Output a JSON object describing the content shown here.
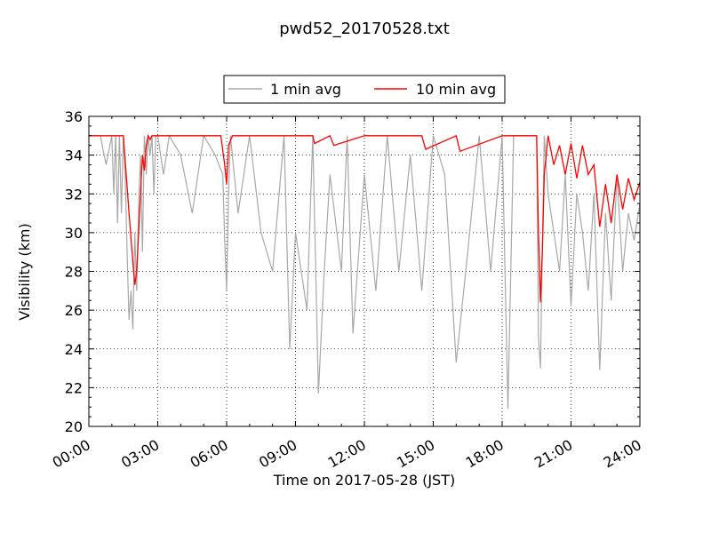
{
  "chart_data": {
    "type": "line",
    "title": "pwd52_20170528.txt",
    "xlabel": "Time on 2017-05-28 (JST)",
    "ylabel": "Visibility (km)",
    "xlim": [
      "2017-05-28 00:00",
      "2017-05-29 00:00"
    ],
    "ylim": [
      20,
      36
    ],
    "x_ticks": [
      "00:00",
      "03:00",
      "06:00",
      "09:00",
      "12:00",
      "15:00",
      "18:00",
      "21:00",
      "24:00"
    ],
    "y_ticks": [
      "20",
      "22",
      "24",
      "26",
      "28",
      "30",
      "32",
      "34",
      "36"
    ],
    "grid": true,
    "legend_position": "top-center",
    "series": [
      {
        "name": "1 min avg",
        "color": "#a8a8a8",
        "x": [
          "00:00",
          "00:30",
          "00:45",
          "01:00",
          "01:05",
          "01:10",
          "01:15",
          "01:20",
          "01:25",
          "01:30",
          "01:35",
          "01:40",
          "01:45",
          "01:50",
          "01:55",
          "02:00",
          "02:05",
          "02:10",
          "02:15",
          "02:20",
          "02:25",
          "02:30",
          "02:35",
          "02:40",
          "02:45",
          "02:50",
          "02:55",
          "03:00",
          "03:15",
          "03:30",
          "04:00",
          "04:30",
          "05:00",
          "05:30",
          "05:50",
          "05:55",
          "06:00",
          "06:05",
          "06:10",
          "06:30",
          "07:00",
          "07:30",
          "08:00",
          "08:30",
          "08:45",
          "09:00",
          "09:30",
          "09:45",
          "10:00",
          "10:15",
          "10:30",
          "11:00",
          "11:15",
          "11:30",
          "12:00",
          "12:30",
          "13:00",
          "13:30",
          "14:00",
          "14:30",
          "15:00",
          "15:30",
          "16:00",
          "16:30",
          "17:00",
          "17:30",
          "18:00",
          "18:15",
          "18:30",
          "19:00",
          "19:30",
          "19:35",
          "19:40",
          "19:45",
          "19:50",
          "20:00",
          "20:30",
          "20:45",
          "21:00",
          "21:15",
          "21:30",
          "21:45",
          "22:00",
          "22:15",
          "22:30",
          "22:45",
          "23:00",
          "23:15",
          "23:30",
          "23:45",
          "24:00"
        ],
        "y": [
          35,
          35,
          33.5,
          35,
          32,
          35,
          30.5,
          35,
          31,
          35,
          33,
          28.8,
          25.5,
          27,
          25,
          30,
          27,
          31.5,
          34,
          29,
          35,
          33,
          35,
          34,
          35,
          32,
          35,
          35,
          33,
          35,
          34,
          31,
          35,
          34,
          33,
          29.6,
          27,
          32,
          35,
          31,
          35,
          30,
          28,
          35,
          24,
          30,
          26,
          35,
          21.7,
          28,
          33,
          28,
          35,
          24.8,
          33,
          27,
          35,
          28,
          34,
          27,
          35,
          33,
          23.3,
          29,
          35,
          28,
          35,
          20.9,
          35,
          35,
          35,
          24.6,
          23,
          29,
          35,
          32,
          28,
          33,
          26.2,
          32,
          30,
          27,
          32,
          22.9,
          31,
          26.5,
          33,
          28,
          31,
          29.6,
          31.5
        ]
      },
      {
        "name": "10 min avg",
        "color": "#ff0000",
        "x": [
          "00:00",
          "01:00",
          "01:30",
          "01:45",
          "01:55",
          "02:00",
          "02:05",
          "02:10",
          "02:15",
          "02:20",
          "02:25",
          "02:30",
          "02:35",
          "02:40",
          "02:45",
          "03:00",
          "05:45",
          "05:55",
          "06:00",
          "06:05",
          "06:15",
          "09:45",
          "09:50",
          "10:30",
          "10:40",
          "12:00",
          "14:30",
          "14:40",
          "16:00",
          "16:10",
          "18:00",
          "19:30",
          "19:35",
          "19:40",
          "19:45",
          "19:50",
          "20:00",
          "20:15",
          "20:30",
          "20:45",
          "21:00",
          "21:15",
          "21:30",
          "21:45",
          "22:00",
          "22:15",
          "22:30",
          "22:45",
          "23:00",
          "23:15",
          "23:30",
          "23:45",
          "24:00"
        ],
        "y": [
          35,
          35,
          35,
          31,
          28.5,
          27.3,
          28,
          30,
          32,
          34,
          33.2,
          34.5,
          35,
          34.8,
          35,
          35,
          35,
          33.5,
          32.5,
          34.5,
          35,
          35,
          34.6,
          35,
          34.5,
          35,
          35,
          34.3,
          35,
          34.2,
          35,
          35,
          30,
          26.4,
          29,
          33,
          35,
          33.5,
          34.5,
          33,
          34.6,
          32.8,
          34.5,
          33,
          33.5,
          30.3,
          32.5,
          30.5,
          33,
          31.2,
          32.8,
          31.7,
          32.6
        ]
      }
    ]
  }
}
